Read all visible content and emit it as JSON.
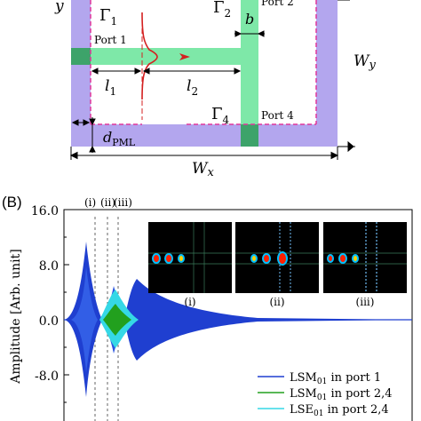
{
  "panel_a": {
    "y_label": "y",
    "gamma1": "Γ",
    "gamma1_sub": "1",
    "gamma2": "Γ",
    "gamma2_sub": "2",
    "gamma4": "Γ",
    "gamma4_sub": "4",
    "port1": "Port 1",
    "port2": "Port 2",
    "port4": "Port 4",
    "b": "b",
    "wy": "W",
    "wy_sub": "y",
    "wx": "W",
    "wx_sub": "x",
    "l1": "l",
    "l1_sub": "1",
    "l2": "l",
    "l2_sub": "2",
    "dpml": "d",
    "dpml_sub": "PML",
    "colors": {
      "pml": "#b3a6ee",
      "waveguide": "#7ee8a8",
      "port_box": "#3da36a",
      "interior": "#ffffff",
      "pulse": "#d42020",
      "dash": "#e0379b"
    }
  },
  "panel_b": {
    "label": "(B)",
    "ylabel": "Amplitude [Arb. unit]",
    "yticks": [
      "16.0",
      "8.0",
      "0.0",
      "-8.0"
    ],
    "markers": [
      "(i)",
      "(ii)",
      "(iii)"
    ],
    "insets": [
      "(i)",
      "(ii)",
      "(iii)"
    ],
    "legend": [
      {
        "main": "LSM",
        "sub": "01",
        "rest": " in port 1",
        "color": "#1f3fd0"
      },
      {
        "main": "LSM",
        "sub": "01",
        "rest": " in port 2,4",
        "color": "#22a01e"
      },
      {
        "main": "LSE",
        "sub": "01",
        "rest": " in port 2,4",
        "color": "#35d8e6"
      }
    ]
  },
  "chart_data": {
    "type": "line",
    "ylabel": "Amplitude [Arb. unit]",
    "ylim": [
      -12,
      16
    ],
    "series": [
      {
        "name": "LSM01 in port 1",
        "envelope_peaks": [
          12,
          3,
          5.8
        ],
        "color": "#1f3fd0"
      },
      {
        "name": "LSM01 in port 2,4",
        "envelope_peaks": [
          1.6
        ],
        "color": "#22a01e"
      },
      {
        "name": "LSE01 in port 2,4",
        "envelope_peaks": [
          2.8
        ],
        "color": "#35d8e6"
      }
    ]
  }
}
